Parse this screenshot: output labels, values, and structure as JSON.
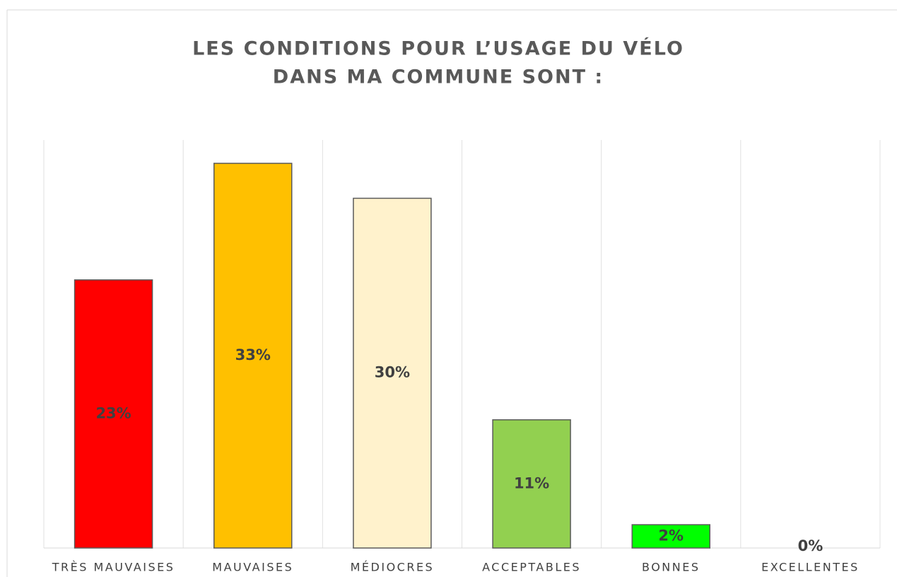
{
  "chart_data": {
    "type": "bar",
    "title": [
      "LES CONDITIONS POUR L’USAGE DU VÉLO",
      "DANS MA COMMUNE SONT :"
    ],
    "categories": [
      "TRÈS MAUVAISES",
      "MAUVAISES",
      "MÉDIOCRES",
      "ACCEPTABLES",
      "BONNES",
      "EXCELLENTES"
    ],
    "values": [
      23,
      33,
      30,
      11,
      2,
      0
    ],
    "value_labels": [
      "23%",
      "33%",
      "30%",
      "11%",
      "2%",
      "0%"
    ],
    "colors": [
      "#ff0000",
      "#ffc000",
      "#fff2cc",
      "#92d050",
      "#00ff00",
      "#70ad47"
    ],
    "ylim": [
      0,
      35
    ]
  }
}
